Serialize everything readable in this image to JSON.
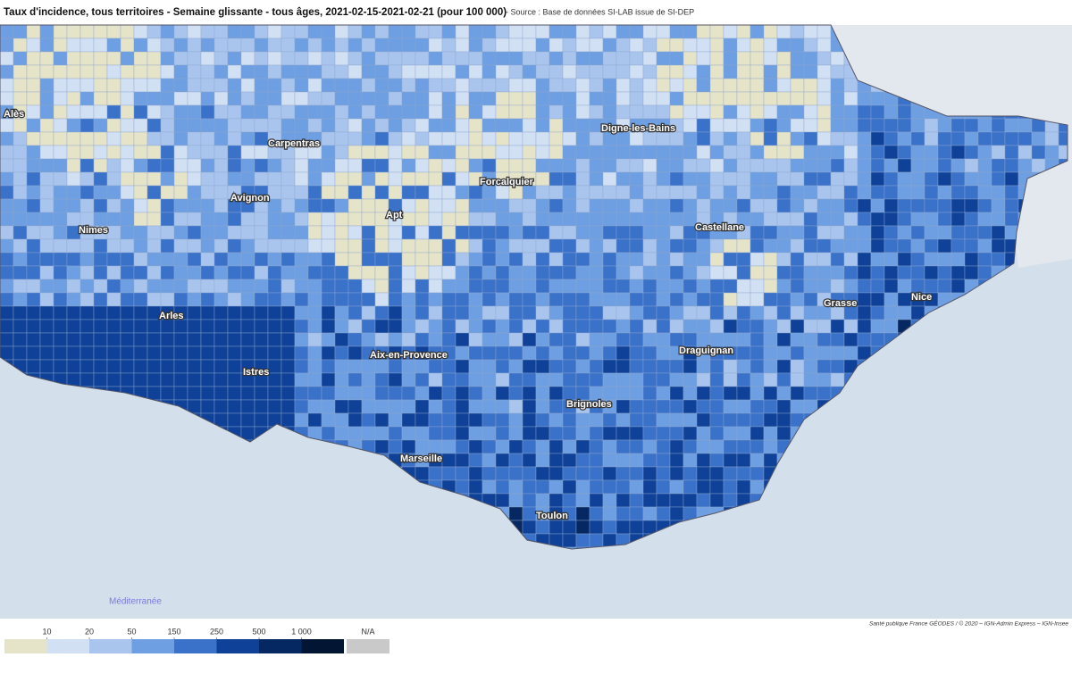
{
  "header": {
    "title": "Taux d'incidence, tous territoires - Semaine glissante - tous âges, 2021-02-15-2021-02-21 (pour 100 000)",
    "source": "- Source : Base de données SI-LAB issue de SI-DEP"
  },
  "map": {
    "cities": [
      "Alès",
      "Carpentras",
      "Digne-les-Bains",
      "Forcalquier",
      "Avignon",
      "Apt",
      "Castellane",
      "Nimes",
      "Arles",
      "Grasse",
      "Nice",
      "Aix-en-Provence",
      "Istres",
      "Draguignan",
      "Brignoles",
      "Marseille",
      "Toulon"
    ],
    "sea_label": "Méditerranée"
  },
  "legend": {
    "ticks": [
      10,
      20,
      50,
      150,
      250,
      500,
      {
        "value": 1000,
        "label": "1 000"
      }
    ],
    "colors": [
      "#e6e4c8",
      "#d2e0f4",
      "#a9c5ee",
      "#6e9fe2",
      "#3a72c9",
      "#0e4197",
      "#062862",
      "#021634"
    ],
    "na_label": "N/A",
    "na_color": "#c9c9c9"
  },
  "footer": {
    "credit": "Santé publique France GÉODES / © 2020 – IGN-Admin Express – IGN-Insee"
  }
}
